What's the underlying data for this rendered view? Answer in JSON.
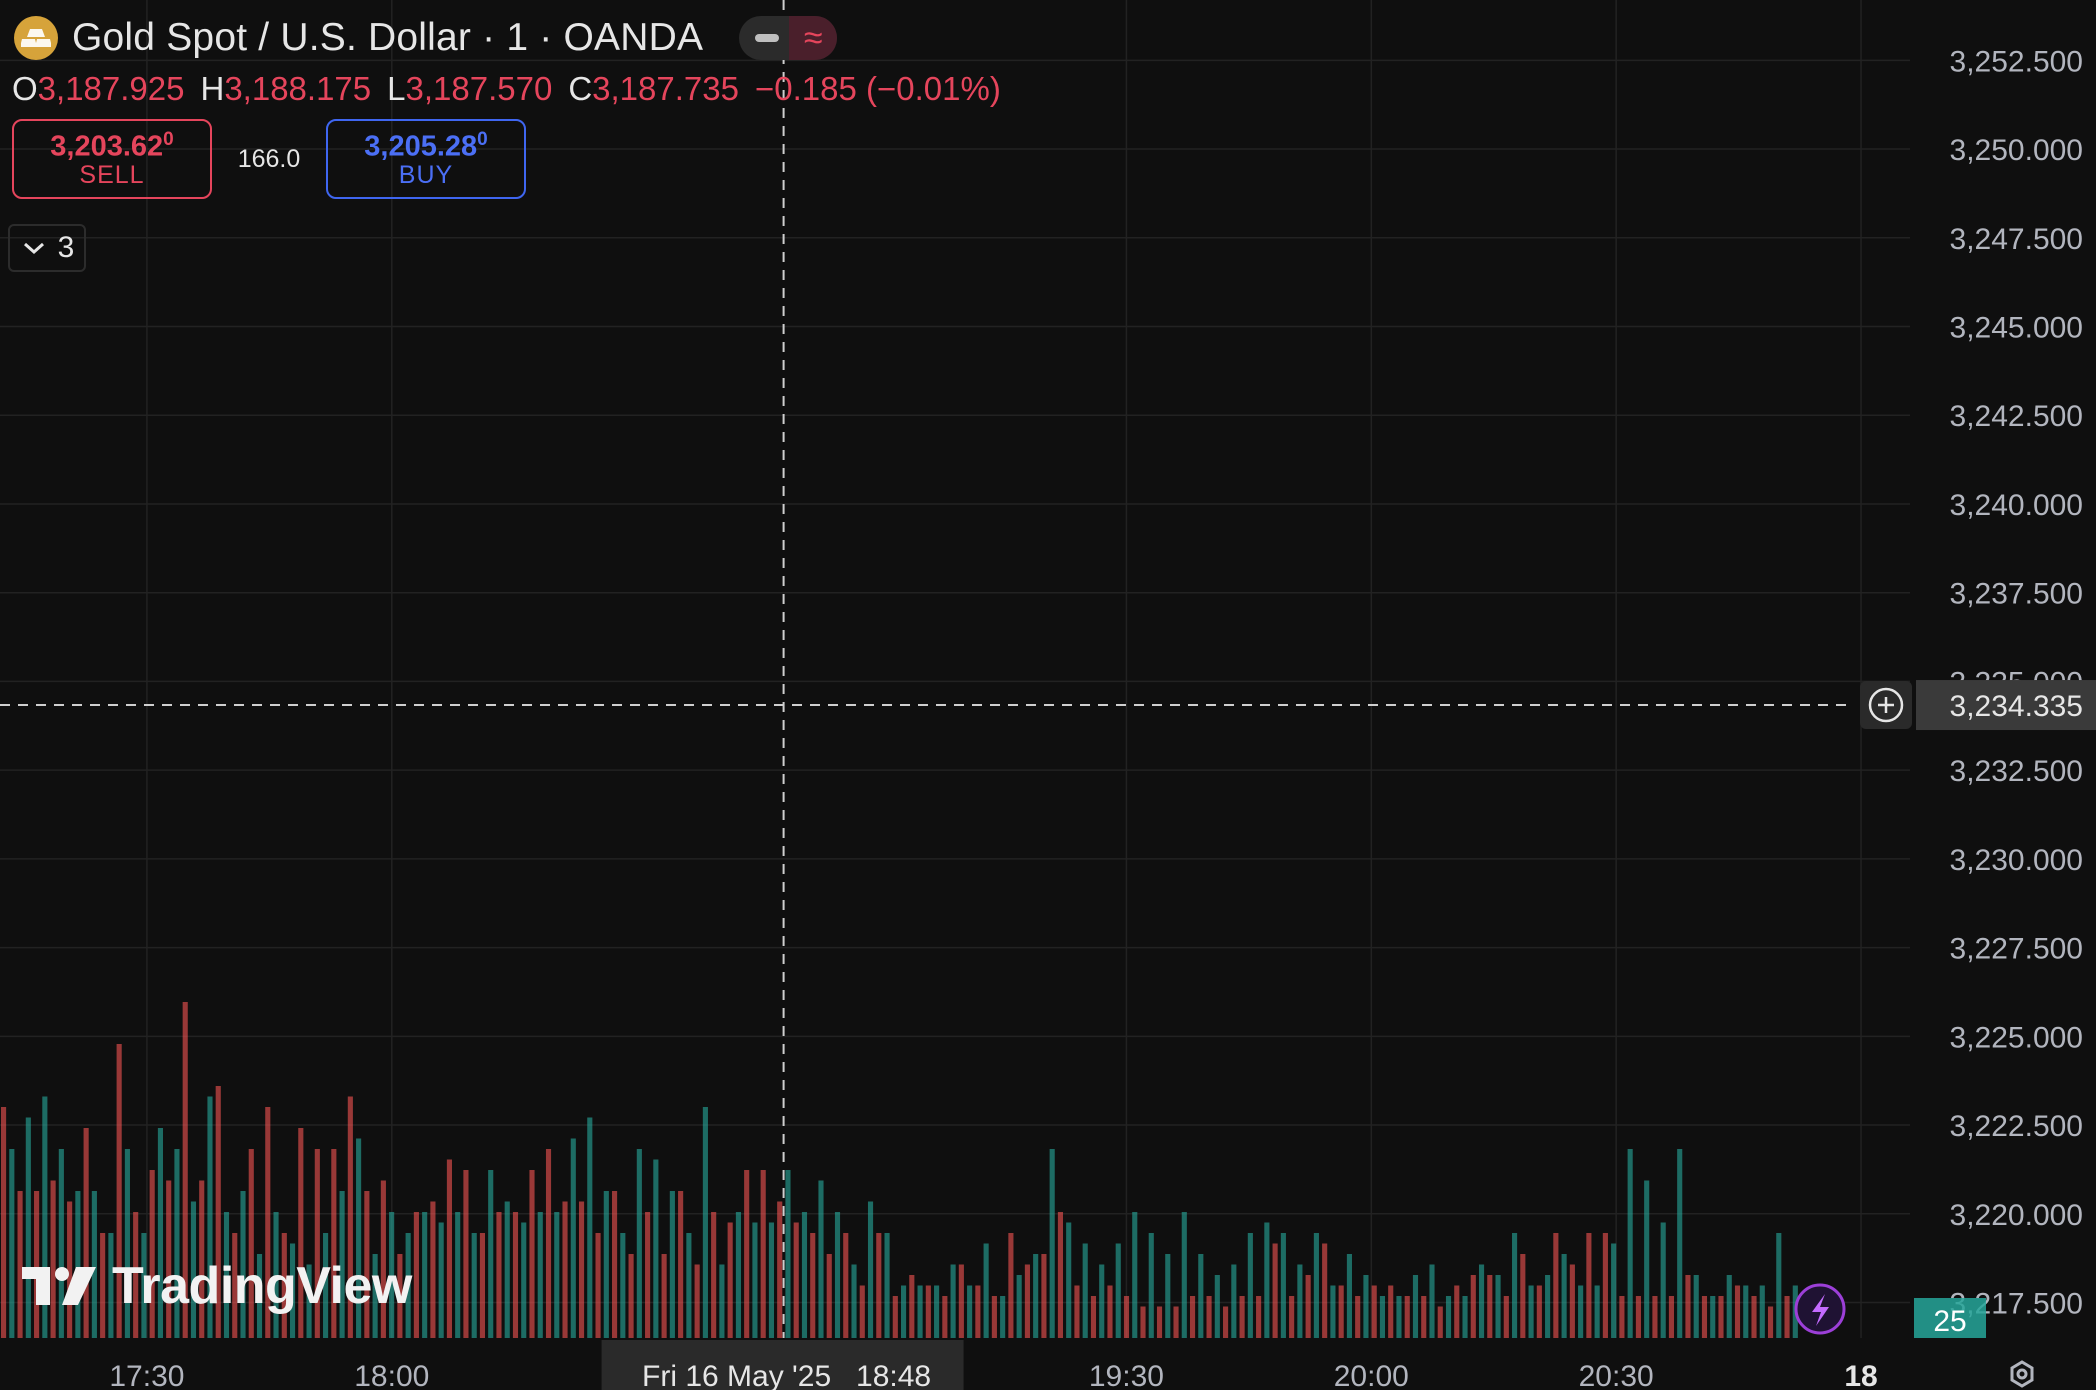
{
  "header": {
    "title": "Gold Spot / U.S. Dollar · 1 · OANDA",
    "toggle_icon": "wave-approx-icon",
    "ohlc": [
      {
        "key": "O",
        "value": "3,187.925"
      },
      {
        "key": "H",
        "value": "3,188.175"
      },
      {
        "key": "L",
        "value": "3,187.570"
      },
      {
        "key": "C",
        "value": "3,187.735"
      }
    ],
    "change": "−0.185 (−0.01%)",
    "sell": {
      "price": "3,203.62",
      "sup": "0",
      "label": "SELL"
    },
    "spread": "166.0",
    "buy": {
      "price": "3,205.28",
      "sup": "0",
      "label": "BUY"
    },
    "indicators_count": "3"
  },
  "brand": {
    "name": "TradingView"
  },
  "colors": {
    "up": "#26a69a",
    "down": "#ef5350",
    "accent_buy": "#3f66f0",
    "accent_sell": "#e5455c"
  },
  "chart_data": {
    "type": "bar",
    "y_axis": {
      "ticks": [
        "3,252.500",
        "3,250.000",
        "3,247.500",
        "3,245.000",
        "3,242.500",
        "3,240.000",
        "3,237.500",
        "3,235.000",
        "3,232.500",
        "3,230.000",
        "3,227.500",
        "3,225.000",
        "3,222.500",
        "3,220.000",
        "3,217.500"
      ],
      "ylim": [
        3216.5,
        3254.2
      ]
    },
    "x_axis": {
      "ticks": [
        {
          "label": "17:30",
          "t": 0
        },
        {
          "label": "18:00",
          "t": 30
        },
        {
          "label": "19:30",
          "t": 120
        },
        {
          "label": "20:00",
          "t": 150
        },
        {
          "label": "20:30",
          "t": 180
        },
        {
          "label": "18",
          "t": 210,
          "bold": true
        }
      ],
      "range_minutes": [
        -18,
        216
      ]
    },
    "crosshair": {
      "price": 3234.335,
      "price_label": "3,234.335",
      "t": 78,
      "time_label": "Fri 16 May '25",
      "time_value": "18:48"
    },
    "volume_label": "25",
    "grid": true,
    "volume_up": [
      18,
      21,
      23,
      18,
      14,
      14,
      10,
      18,
      10,
      20,
      18,
      13,
      23,
      12,
      14,
      8,
      12,
      9,
      7,
      10,
      14,
      19,
      8,
      12,
      10,
      12,
      11,
      12,
      10,
      16,
      13,
      11,
      12,
      12,
      19,
      21,
      14,
      10,
      18,
      17,
      14,
      10,
      22,
      7,
      12,
      11,
      11,
      16,
      12,
      15,
      12,
      7,
      13,
      10,
      5,
      5,
      5,
      7,
      5,
      9,
      4,
      6,
      8,
      18,
      11,
      9,
      7,
      9,
      12,
      10,
      8,
      12,
      8,
      6,
      7,
      10,
      11,
      10,
      7,
      10,
      5,
      8,
      6,
      4,
      4,
      6,
      7,
      4,
      4,
      7,
      6,
      10,
      5,
      6,
      8,
      5,
      5,
      9,
      18,
      15,
      11,
      18,
      6,
      4,
      6,
      5,
      5,
      10,
      5
    ],
    "volume_down": [
      22,
      14,
      14,
      15,
      13,
      20,
      10,
      28,
      12,
      16,
      15,
      32,
      15,
      24,
      10,
      18,
      22,
      10,
      20,
      18,
      18,
      23,
      14,
      15,
      8,
      12,
      13,
      17,
      16,
      10,
      12,
      12,
      16,
      18,
      13,
      13,
      10,
      14,
      8,
      12,
      8,
      14,
      7,
      12,
      11,
      16,
      16,
      13,
      11,
      10,
      8,
      10,
      5,
      10,
      4,
      6,
      5,
      4,
      7,
      5,
      4,
      10,
      7,
      8,
      12,
      5,
      4,
      5,
      4,
      3,
      3,
      3,
      4,
      4,
      3,
      4,
      4,
      9,
      4,
      6,
      9,
      5,
      4,
      5,
      5,
      4,
      4,
      3,
      5,
      6,
      6,
      4,
      8,
      5,
      10,
      7,
      10,
      10,
      4,
      4,
      4,
      4,
      6,
      4,
      4,
      5,
      4,
      3,
      4
    ]
  }
}
